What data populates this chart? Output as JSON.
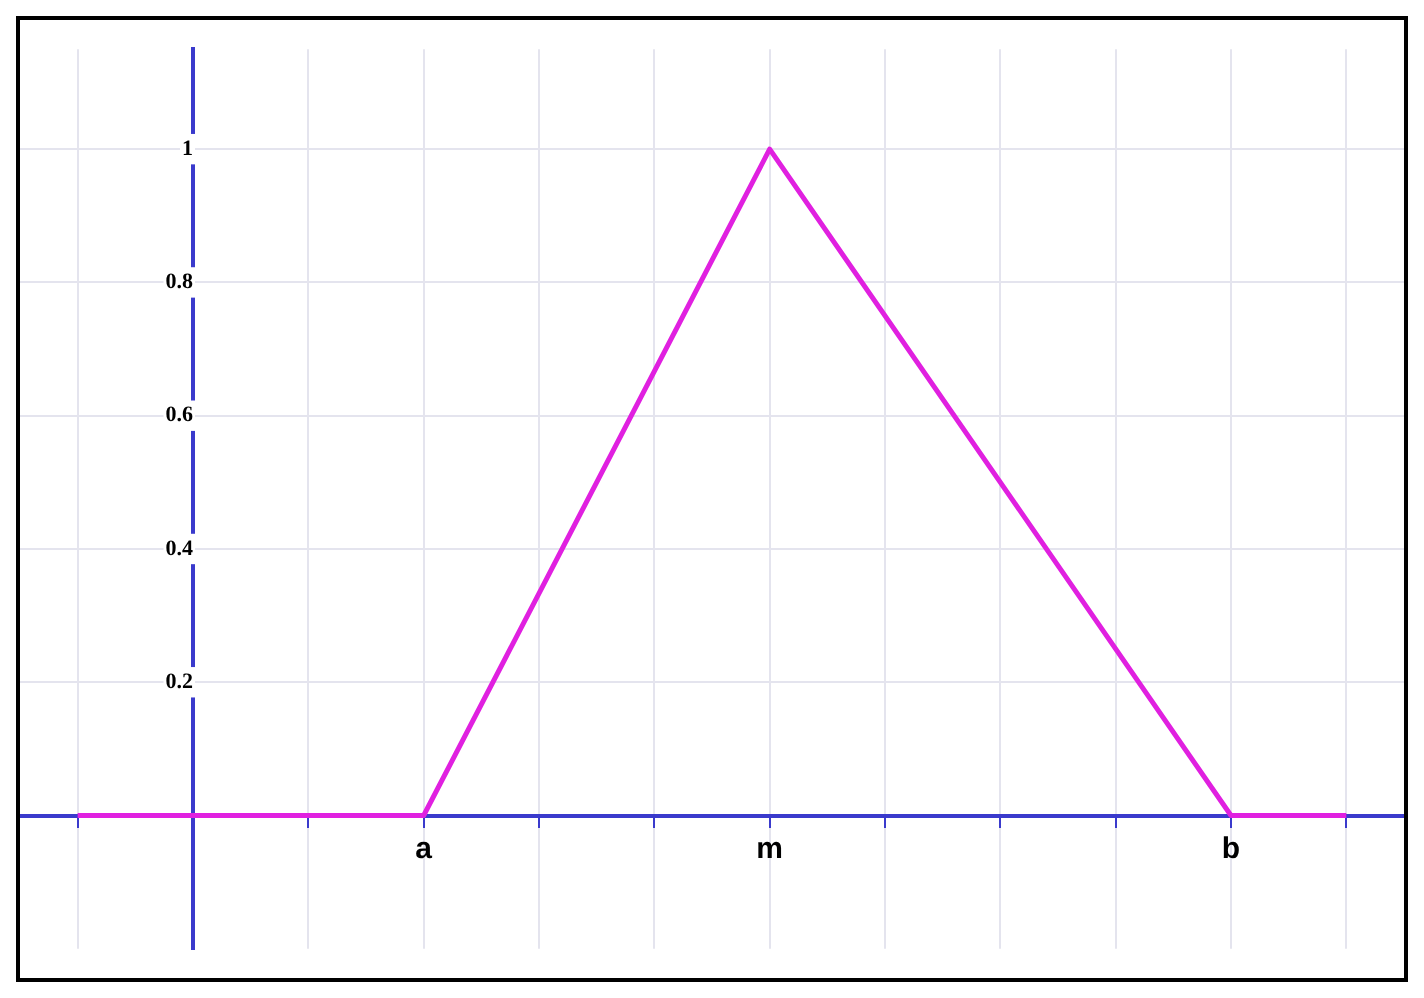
{
  "chart_data": {
    "type": "line",
    "categories": [
      null,
      null,
      null,
      "a",
      null,
      null,
      "m",
      null,
      null,
      null,
      "b",
      null
    ],
    "values": [
      0,
      null,
      null,
      0,
      null,
      null,
      1,
      null,
      null,
      null,
      0,
      0
    ],
    "color": "#e020e0",
    "marker": "none",
    "line_style": "solid",
    "ylim": [
      -0.2,
      1.15
    ],
    "yticks": [
      0.2,
      0.4,
      0.6,
      0.8,
      1
    ],
    "grid": true
  }
}
